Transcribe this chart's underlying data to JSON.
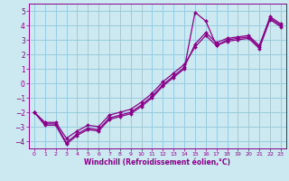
{
  "xlabel": "Windchill (Refroidissement éolien,°C)",
  "bg_color": "#cce8f0",
  "grid_color": "#99cce0",
  "line_color": "#880088",
  "spine_color": "#880088",
  "xlim": [
    -0.5,
    23.5
  ],
  "ylim": [
    -4.5,
    5.5
  ],
  "xticks": [
    0,
    1,
    2,
    3,
    4,
    5,
    6,
    7,
    8,
    9,
    10,
    11,
    12,
    13,
    14,
    15,
    16,
    17,
    18,
    19,
    20,
    21,
    22,
    23
  ],
  "yticks": [
    -4,
    -3,
    -2,
    -1,
    0,
    1,
    2,
    3,
    4,
    5
  ],
  "line1_x": [
    0,
    1,
    2,
    3,
    4,
    5,
    6,
    7,
    8,
    9,
    10,
    11,
    12,
    13,
    14,
    15,
    16,
    17,
    18,
    19,
    20,
    21,
    22,
    23
  ],
  "line1_y": [
    -2.0,
    -2.8,
    -2.8,
    -4.1,
    -3.5,
    -3.1,
    -3.2,
    -2.4,
    -2.2,
    -2.0,
    -1.5,
    -0.9,
    -0.1,
    0.5,
    1.1,
    2.7,
    3.5,
    2.8,
    3.1,
    3.2,
    3.3,
    2.6,
    4.5,
    4.0
  ],
  "line2_x": [
    0,
    1,
    2,
    3,
    4,
    5,
    6,
    7,
    8,
    9,
    10,
    11,
    12,
    13,
    14,
    15,
    16,
    17,
    18,
    19,
    20,
    21,
    22,
    23
  ],
  "line2_y": [
    -2.0,
    -2.9,
    -2.9,
    -4.2,
    -3.6,
    -3.2,
    -3.3,
    -2.5,
    -2.3,
    -2.1,
    -1.6,
    -1.0,
    -0.2,
    0.4,
    1.0,
    4.9,
    4.3,
    2.6,
    3.0,
    3.1,
    3.2,
    2.5,
    4.6,
    4.1
  ],
  "line3_x": [
    0,
    1,
    2,
    3,
    4,
    5,
    6,
    7,
    8,
    9,
    10,
    11,
    12,
    13,
    14,
    15,
    16,
    17,
    18,
    19,
    20,
    21,
    22,
    23
  ],
  "line3_y": [
    -2.0,
    -2.7,
    -2.7,
    -3.8,
    -3.3,
    -2.9,
    -3.0,
    -2.2,
    -2.0,
    -1.8,
    -1.3,
    -0.7,
    0.1,
    0.7,
    1.3,
    2.5,
    3.3,
    2.6,
    2.9,
    3.0,
    3.1,
    2.4,
    4.4,
    3.9
  ],
  "tick_fontsize": 5.0,
  "xlabel_fontsize": 5.5
}
